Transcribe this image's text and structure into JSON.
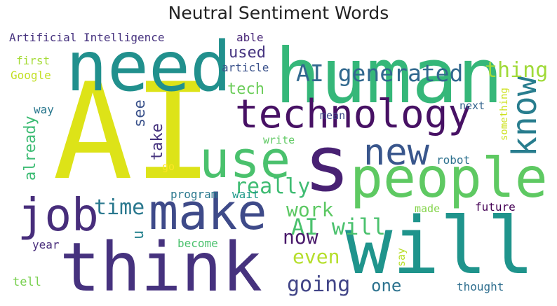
{
  "title": "Neutral Sentiment Words",
  "words": [
    {
      "text": "AI",
      "color": "#dde318"
    },
    {
      "text": "human",
      "color": "#35b779"
    },
    {
      "text": "need",
      "color": "#21908d"
    },
    {
      "text": "will",
      "color": "#1f948c"
    },
    {
      "text": "think",
      "color": "#46327e"
    },
    {
      "text": "people",
      "color": "#5ec962"
    },
    {
      "text": "make",
      "color": "#3e4a89"
    },
    {
      "text": "technology",
      "color": "#471164"
    },
    {
      "text": "s",
      "color": "#482173"
    },
    {
      "text": "use",
      "color": "#4ac16d"
    },
    {
      "text": "job",
      "color": "#472d7b"
    },
    {
      "text": "know",
      "color": "#287d8e"
    },
    {
      "text": "new",
      "color": "#39568c"
    },
    {
      "text": "AI generated",
      "color": "#31688e"
    },
    {
      "text": "thing",
      "color": "#a0da39"
    },
    {
      "text": "time",
      "color": "#2a788e"
    },
    {
      "text": "really",
      "color": "#3fbc73"
    },
    {
      "text": "work",
      "color": "#5cc863"
    },
    {
      "text": "AI will",
      "color": "#4ac16d"
    },
    {
      "text": "going",
      "color": "#414487"
    },
    {
      "text": "even",
      "color": "#b5de2b"
    },
    {
      "text": "now",
      "color": "#48186a"
    },
    {
      "text": "one",
      "color": "#2c728e"
    },
    {
      "text": "tech",
      "color": "#6ccd5a"
    },
    {
      "text": "see",
      "color": "#3b528b"
    },
    {
      "text": "take",
      "color": "#46337e"
    },
    {
      "text": "already",
      "color": "#3dbc74"
    },
    {
      "text": "used",
      "color": "#463480"
    },
    {
      "text": "u",
      "color": "#26828e"
    },
    {
      "text": "Artificial Intelligence",
      "color": "#46327e"
    },
    {
      "text": "able",
      "color": "#482677"
    },
    {
      "text": "article",
      "color": "#3b528b"
    },
    {
      "text": "first",
      "color": "#a5db36"
    },
    {
      "text": "Google",
      "color": "#c2df23"
    },
    {
      "text": "way",
      "color": "#2a788e"
    },
    {
      "text": "next",
      "color": "#33638d"
    },
    {
      "text": "something",
      "color": "#cde11d"
    },
    {
      "text": "mean",
      "color": "#3e4989"
    },
    {
      "text": "write",
      "color": "#5ec962"
    },
    {
      "text": "go",
      "color": "#fde725"
    },
    {
      "text": "robot",
      "color": "#2d718e"
    },
    {
      "text": "program",
      "color": "#2a788e"
    },
    {
      "text": "wait",
      "color": "#1f9a8a"
    },
    {
      "text": "made",
      "color": "#84d44b"
    },
    {
      "text": "future",
      "color": "#440154"
    },
    {
      "text": "become",
      "color": "#4ac16d"
    },
    {
      "text": "say",
      "color": "#b8de29"
    },
    {
      "text": "year",
      "color": "#472c7a"
    },
    {
      "text": "tell",
      "color": "#7ad151"
    },
    {
      "text": "thought",
      "color": "#2e6e8e"
    }
  ]
}
